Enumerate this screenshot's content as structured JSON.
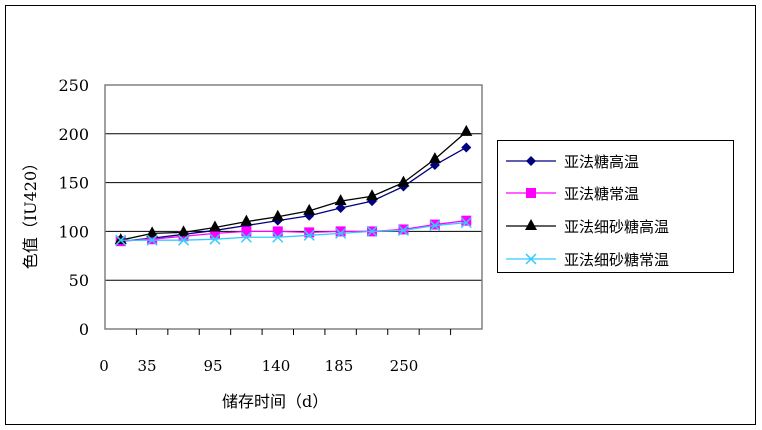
{
  "chart_data": {
    "type": "line",
    "title": "",
    "xlabel": "储存时间（d）",
    "ylabel": "色值（IU420）",
    "ylim": [
      0,
      250
    ],
    "yticks": [
      "0",
      "50",
      "100",
      "150",
      "200",
      "250"
    ],
    "xtick_labels": [
      "0",
      "35",
      "95",
      "140",
      "185",
      "250"
    ],
    "grid": true,
    "legend": "right",
    "series": [
      {
        "name": "亚法糖高温",
        "color": "#000080",
        "marker": "diamond",
        "values": [
          90,
          93,
          97,
          101,
          106,
          111,
          116,
          124,
          131,
          146,
          168,
          186
        ]
      },
      {
        "name": "亚法糖常温",
        "color": "#ff00ff",
        "marker": "square",
        "values": [
          90,
          92,
          95,
          98,
          100,
          100,
          99,
          100,
          100,
          102,
          107,
          111
        ]
      },
      {
        "name": "亚法细砂糖高温",
        "color": "#000000",
        "marker": "triangle",
        "values": [
          91,
          98,
          99,
          104,
          110,
          115,
          121,
          131,
          136,
          150,
          174,
          202
        ]
      },
      {
        "name": "亚法细砂糖常温",
        "color": "#33ccff",
        "marker": "x",
        "values": [
          91,
          91,
          91,
          92,
          94,
          94,
          96,
          98,
          100,
          101,
          106,
          109
        ]
      }
    ]
  }
}
